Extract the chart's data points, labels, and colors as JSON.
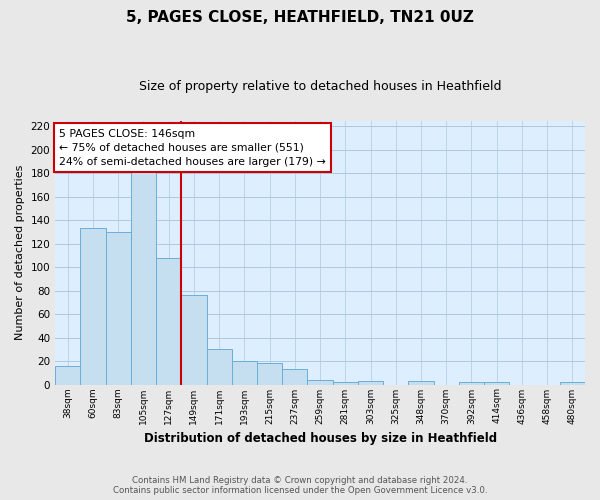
{
  "title": "5, PAGES CLOSE, HEATHFIELD, TN21 0UZ",
  "subtitle": "Size of property relative to detached houses in Heathfield",
  "xlabel": "Distribution of detached houses by size in Heathfield",
  "ylabel": "Number of detached properties",
  "bin_labels": [
    "38sqm",
    "60sqm",
    "83sqm",
    "105sqm",
    "127sqm",
    "149sqm",
    "171sqm",
    "193sqm",
    "215sqm",
    "237sqm",
    "259sqm",
    "281sqm",
    "303sqm",
    "325sqm",
    "348sqm",
    "370sqm",
    "392sqm",
    "414sqm",
    "436sqm",
    "458sqm",
    "480sqm"
  ],
  "bar_values": [
    16,
    133,
    130,
    183,
    108,
    76,
    30,
    20,
    18,
    13,
    4,
    2,
    3,
    0,
    3,
    0,
    2,
    2,
    0,
    0,
    2
  ],
  "bar_color": "#c5dff0",
  "bar_edge_color": "#6aaed6",
  "vline_x_index": 5,
  "vline_color": "#cc0000",
  "annotation_text": "5 PAGES CLOSE: 146sqm\n← 75% of detached houses are smaller (551)\n24% of semi-detached houses are larger (179) →",
  "annotation_box_color": "#ffffff",
  "annotation_box_edge": "#cc0000",
  "ylim": [
    0,
    225
  ],
  "yticks": [
    0,
    20,
    40,
    60,
    80,
    100,
    120,
    140,
    160,
    180,
    200,
    220
  ],
  "footer_line1": "Contains HM Land Registry data © Crown copyright and database right 2024.",
  "footer_line2": "Contains public sector information licensed under the Open Government Licence v3.0.",
  "bg_color": "#e8e8e8",
  "plot_bg_color": "#ddeeff",
  "grid_color": "#b0c8e0"
}
